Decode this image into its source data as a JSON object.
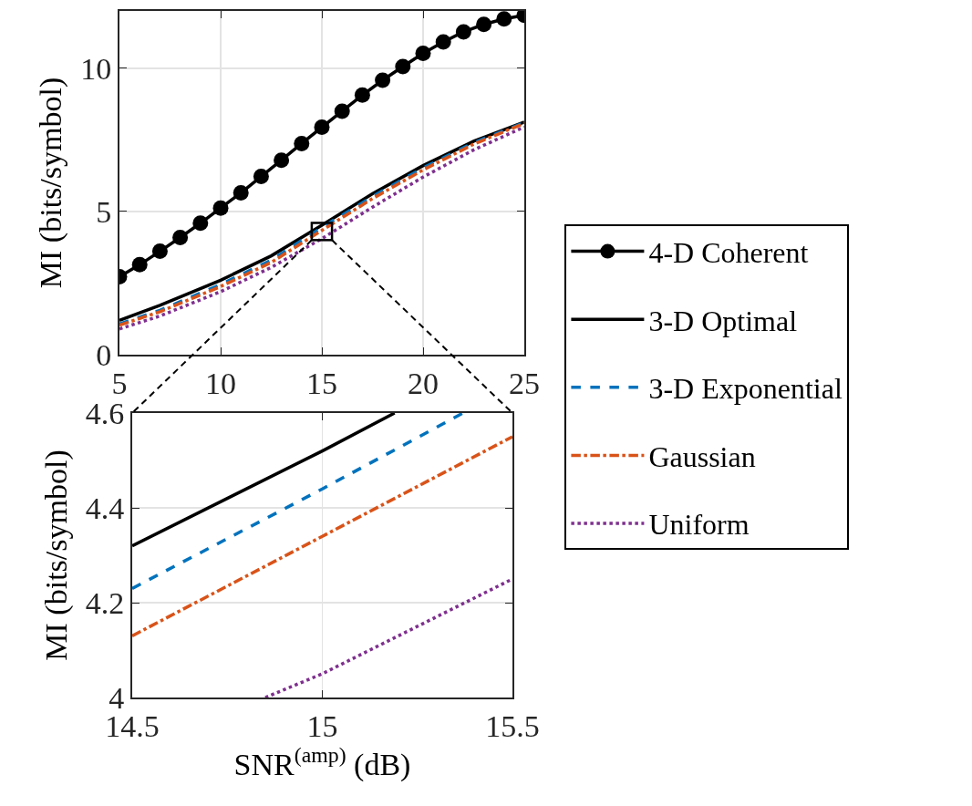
{
  "chart_data": [
    {
      "type": "line",
      "ylabel": "MI (bits/symbol)",
      "xlim": [
        5,
        25
      ],
      "xticks": [
        5,
        10,
        15,
        20,
        25
      ],
      "ylim": [
        0,
        12
      ],
      "yticks": [
        0,
        5,
        10
      ],
      "grid": true,
      "legend": "right",
      "series": [
        {
          "name": "4-D Coherent",
          "color": "#000000",
          "marker": "circle",
          "line_style": "solid",
          "x": [
            5,
            6,
            7,
            8,
            9,
            10,
            11,
            12,
            13,
            14,
            15,
            16,
            17,
            18,
            19,
            20,
            21,
            22,
            23,
            24,
            25
          ],
          "values": [
            2.72,
            3.14,
            3.61,
            4.09,
            4.59,
            5.12,
            5.65,
            6.22,
            6.79,
            7.37,
            7.94,
            8.5,
            9.06,
            9.58,
            10.06,
            10.52,
            10.92,
            11.27,
            11.53,
            11.72,
            11.85
          ]
        },
        {
          "name": "3-D Optimal",
          "color": "#000000",
          "marker": "none",
          "line_style": "solid",
          "x": [
            5,
            7,
            10,
            12.5,
            15,
            17.5,
            20,
            22.5,
            25
          ],
          "values": [
            1.2,
            1.72,
            2.6,
            3.45,
            4.52,
            5.62,
            6.6,
            7.45,
            8.12
          ]
        },
        {
          "name": "3-D Exponential",
          "color": "#0072bd",
          "marker": "none",
          "line_style": "dashed",
          "x": [
            5,
            7,
            10,
            12.5,
            15,
            17.5,
            20,
            22.5,
            25
          ],
          "values": [
            1.07,
            1.55,
            2.45,
            3.3,
            4.44,
            5.52,
            6.52,
            7.4,
            8.1
          ]
        },
        {
          "name": "Gaussian",
          "color": "#d95319",
          "marker": "none",
          "line_style": "dashdot",
          "x": [
            5,
            7,
            10,
            12.5,
            15,
            17.5,
            20,
            22.5,
            25
          ],
          "values": [
            1.03,
            1.5,
            2.38,
            3.22,
            4.34,
            5.45,
            6.45,
            7.35,
            8.08
          ]
        },
        {
          "name": "Uniform",
          "color": "#7e2f8e",
          "marker": "none",
          "line_style": "dotted",
          "x": [
            5,
            7,
            10,
            12.5,
            15,
            17.5,
            20,
            22.5,
            25
          ],
          "values": [
            0.9,
            1.35,
            2.2,
            3.05,
            4.05,
            5.15,
            6.2,
            7.15,
            7.95
          ]
        }
      ]
    },
    {
      "type": "line",
      "xlabel": "SNR$^{(amp)}$ (dB)",
      "ylabel": "MI (bits/symbol)",
      "xlim": [
        14.5,
        15.5
      ],
      "xticks": [
        14.5,
        15,
        15.5
      ],
      "ylim": [
        4,
        4.6
      ],
      "yticks": [
        4,
        4.2,
        4.4,
        4.6
      ],
      "grid": true,
      "series": [
        {
          "color": "#000000",
          "line_style": "solid",
          "x": [
            14.5,
            15,
            15.19
          ],
          "values": [
            4.32,
            4.52,
            4.6
          ]
        },
        {
          "color": "#0072bd",
          "line_style": "dashed",
          "x": [
            14.5,
            15,
            15.37
          ],
          "values": [
            4.23,
            4.44,
            4.6
          ]
        },
        {
          "color": "#d95319",
          "line_style": "dashdot",
          "x": [
            14.5,
            15,
            15.5
          ],
          "values": [
            4.13,
            4.34,
            4.55
          ]
        },
        {
          "color": "#7e2f8e",
          "line_style": "dotted",
          "x": [
            14.85,
            15,
            15.5
          ],
          "values": [
            4.0,
            4.05,
            4.25
          ]
        }
      ]
    }
  ]
}
